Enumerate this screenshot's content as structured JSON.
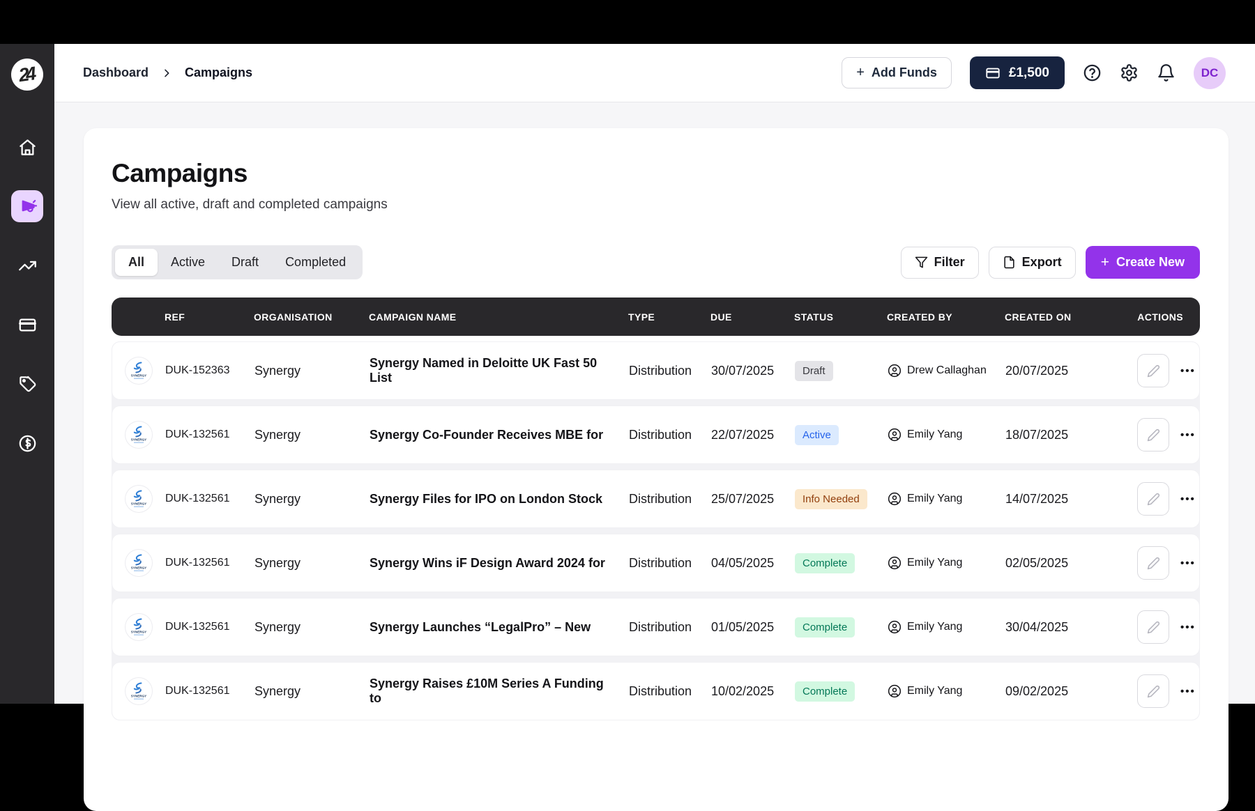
{
  "header": {
    "breadcrumb_root": "Dashboard",
    "breadcrumb_current": "Campaigns",
    "add_funds_label": "Add Funds",
    "add_funds_plus": "+",
    "balance": "£1,500",
    "avatar_initials": "DC"
  },
  "sidebar": {
    "logo_text": "24",
    "items": [
      {
        "icon": "home-icon",
        "active": false
      },
      {
        "icon": "megaphone-icon",
        "active": true
      },
      {
        "icon": "trending-up-icon",
        "active": false
      },
      {
        "icon": "credit-card-icon",
        "active": false
      },
      {
        "icon": "tag-icon",
        "active": false
      },
      {
        "icon": "currency-icon",
        "active": false
      }
    ]
  },
  "page": {
    "title": "Campaigns",
    "subtitle": "View all active, draft and completed campaigns",
    "tabs": [
      "All",
      "Active",
      "Draft",
      "Completed"
    ],
    "active_tab": "All",
    "filter_label": "Filter",
    "export_label": "Export",
    "create_label": "Create New",
    "create_plus": "+"
  },
  "table": {
    "columns": [
      "REF",
      "ORGANISATION",
      "CAMPAIGN NAME",
      "TYPE",
      "DUE",
      "STATUS",
      "CREATED BY",
      "CREATED ON",
      "ACTIONS"
    ],
    "rows": [
      {
        "ref": "DUK-152363",
        "org": "Synergy",
        "name": "Synergy Named in Deloitte UK Fast 50 List",
        "type": "Distribution",
        "due": "30/07/2025",
        "status": "Draft",
        "created_by": "Drew Callaghan",
        "created_on": "20/07/2025"
      },
      {
        "ref": "DUK-132561",
        "org": "Synergy",
        "name": "Synergy Co-Founder Receives MBE for",
        "type": "Distribution",
        "due": "22/07/2025",
        "status": "Active",
        "created_by": "Emily Yang",
        "created_on": "18/07/2025"
      },
      {
        "ref": "DUK-132561",
        "org": "Synergy",
        "name": "Synergy Files for IPO on London Stock",
        "type": "Distribution",
        "due": "25/07/2025",
        "status": "Info Needed",
        "created_by": "Emily Yang",
        "created_on": "14/07/2025"
      },
      {
        "ref": "DUK-132561",
        "org": "Synergy",
        "name": "Synergy Wins iF Design Award 2024 for",
        "type": "Distribution",
        "due": "04/05/2025",
        "status": "Complete",
        "created_by": "Emily Yang",
        "created_on": "02/05/2025"
      },
      {
        "ref": "DUK-132561",
        "org": "Synergy",
        "name": "Synergy Launches “LegalPro” – New",
        "type": "Distribution",
        "due": "01/05/2025",
        "status": "Complete",
        "created_by": "Emily Yang",
        "created_on": "30/04/2025"
      },
      {
        "ref": "DUK-132561",
        "org": "Synergy",
        "name": "Synergy Raises £10M Series A Funding to",
        "type": "Distribution",
        "due": "10/02/2025",
        "status": "Complete",
        "created_by": "Emily Yang",
        "created_on": "09/02/2025"
      }
    ],
    "org_logo_label": "SYNERGY",
    "status_styles": {
      "Draft": {
        "bg": "#e4e4e8",
        "fg": "#3a3a40"
      },
      "Active": {
        "bg": "#dbeafe",
        "fg": "#2563eb"
      },
      "Info Needed": {
        "bg": "#fbe8cc",
        "fg": "#92400e"
      },
      "Complete": {
        "bg": "#d2f8e1",
        "fg": "#047857"
      }
    }
  },
  "colors": {
    "accent_purple": "#9333ea",
    "active_nav_bg": "#e9d5ff",
    "balance_navy": "#17233f",
    "avatar_bg": "#e7ccf9",
    "avatar_fg": "#7e22ce",
    "table_header_bg": "#29282b",
    "sidebar_bg": "#29282b",
    "page_bg": "#f6f6f8"
  }
}
